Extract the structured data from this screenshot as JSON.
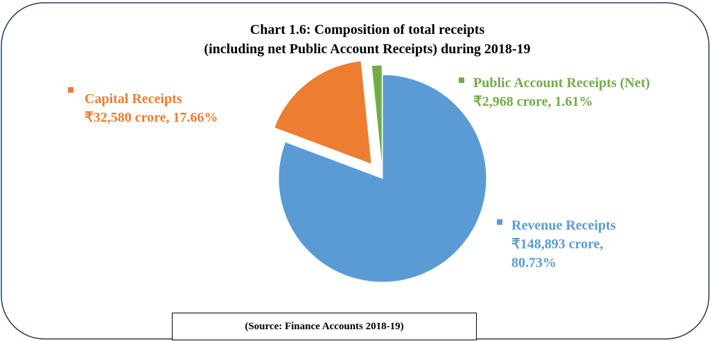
{
  "chart_data": {
    "type": "pie",
    "title": "Chart 1.6: Composition of total receipts",
    "subtitle": "(including net Public Account Receipts) during 2018-19",
    "categories": [
      "Revenue Receipts",
      "Capital Receipts",
      "Public Account Receipts (Net)"
    ],
    "values": [
      80.73,
      17.66,
      1.61
    ],
    "value_labels": [
      "₹148,893 crore, 80.73%",
      "₹32,580 crore, 17.66%",
      "₹2,968 crore, 1.61%"
    ],
    "colors": [
      "#5b9bd5",
      "#ed7d31",
      "#70ad47"
    ],
    "source": "(Source: Finance Accounts 2018-19)"
  }
}
